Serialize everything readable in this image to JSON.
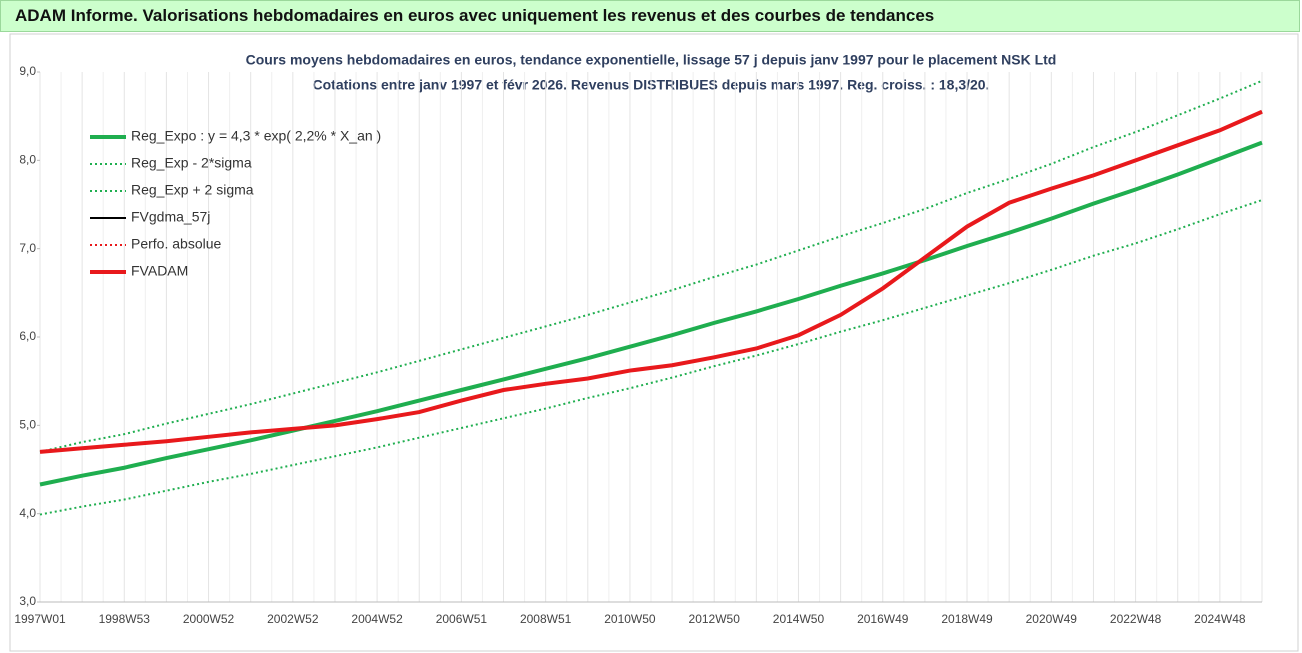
{
  "header": {
    "title": "ADAM Informe. Valorisations hebdomadaires en euros avec uniquement les revenus et des courbes de tendances"
  },
  "chart_data": {
    "type": "line",
    "title": "Cours moyens hebdomadaires en euros, tendance exponentielle, lissage 57 j depuis janv 1997 pour le placement NSK Ltd",
    "subtitle": "Cotations entre janv 1997 et févr 2026. Revenus DISTRIBUES depuis mars 1997. Reg. croiss. : 18,3/20.",
    "categories": [
      "1997W01",
      null,
      "1998W53",
      null,
      "2000W52",
      null,
      "2002W52",
      null,
      "2004W52",
      null,
      "2006W51",
      null,
      "2008W51",
      null,
      "2010W50",
      null,
      "2012W50",
      null,
      "2014W50",
      null,
      "2016W49",
      null,
      "2018W49",
      null,
      "2020W49",
      null,
      "2022W48",
      null,
      "2024W48",
      null
    ],
    "ylim": [
      3,
      9
    ],
    "yticks": [
      {
        "value": 3,
        "label": "3,0"
      },
      {
        "value": 4,
        "label": "4,0"
      },
      {
        "value": 5,
        "label": "5,0"
      },
      {
        "value": 6,
        "label": "6,0"
      },
      {
        "value": 7,
        "label": "7,0"
      },
      {
        "value": 8,
        "label": "8,0"
      },
      {
        "value": 9,
        "label": "9,0"
      }
    ],
    "grid": true,
    "legend": "upper left",
    "series": [
      {
        "name": "Reg_Expo : y = 4,3 * exp( 2,2% *  X_an )",
        "color": "#1fae4f",
        "style": "solid",
        "width": 4,
        "values": [
          4.33,
          4.43,
          4.52,
          4.63,
          4.73,
          4.83,
          4.94,
          5.05,
          5.16,
          5.28,
          5.4,
          5.52,
          5.64,
          5.76,
          5.89,
          6.02,
          6.16,
          6.29,
          6.43,
          6.58,
          6.72,
          6.87,
          7.03,
          7.18,
          7.34,
          7.51,
          7.67,
          7.84,
          8.02,
          8.2
        ]
      },
      {
        "name": "Reg_Exp - 2*sigma",
        "color": "#1fae4f",
        "style": "dotted",
        "width": 2,
        "values": [
          3.99,
          4.08,
          4.16,
          4.26,
          4.36,
          4.45,
          4.55,
          4.65,
          4.75,
          4.86,
          4.97,
          5.08,
          5.19,
          5.31,
          5.42,
          5.54,
          5.67,
          5.79,
          5.92,
          6.06,
          6.19,
          6.33,
          6.47,
          6.61,
          6.76,
          6.92,
          7.06,
          7.22,
          7.39,
          7.55
        ]
      },
      {
        "name": "Reg_Exp + 2 sigma",
        "color": "#1fae4f",
        "style": "dotted",
        "width": 2,
        "values": [
          4.7,
          4.81,
          4.9,
          5.02,
          5.13,
          5.24,
          5.36,
          5.48,
          5.6,
          5.73,
          5.86,
          5.99,
          6.12,
          6.25,
          6.39,
          6.53,
          6.68,
          6.82,
          6.98,
          7.14,
          7.29,
          7.45,
          7.63,
          7.79,
          7.96,
          8.15,
          8.32,
          8.51,
          8.7,
          8.9
        ]
      },
      {
        "name": "FVgdma_57j",
        "color": "#000000",
        "style": "solid",
        "width": 2,
        "values": [
          4.7,
          4.74,
          4.78,
          4.82,
          4.87,
          4.92,
          4.96,
          5.0,
          5.07,
          5.15,
          5.28,
          5.4,
          5.47,
          5.53,
          5.62,
          5.68,
          5.77,
          5.87,
          6.02,
          6.25,
          6.55,
          6.9,
          7.25,
          7.52,
          7.68,
          7.83,
          8.0,
          8.17,
          8.34,
          8.55
        ]
      },
      {
        "name": "Perfo. absolue",
        "color": "#e8191c",
        "style": "dotted",
        "width": 2,
        "values": [
          4.7,
          4.74,
          4.78,
          4.82,
          4.87,
          4.92,
          4.96,
          5.0,
          5.07,
          5.15,
          5.28,
          5.4,
          5.47,
          5.53,
          5.62,
          5.68,
          5.77,
          5.87,
          6.02,
          6.25,
          6.55,
          6.9,
          7.25,
          7.52,
          7.68,
          7.83,
          8.0,
          8.17,
          8.34,
          8.55
        ]
      },
      {
        "name": "FVADAM",
        "color": "#e8191c",
        "style": "solid",
        "width": 4,
        "values": [
          4.7,
          4.74,
          4.78,
          4.82,
          4.87,
          4.92,
          4.96,
          5.0,
          5.07,
          5.15,
          5.28,
          5.4,
          5.47,
          5.53,
          5.62,
          5.68,
          5.77,
          5.87,
          6.02,
          6.25,
          6.55,
          6.9,
          7.25,
          7.52,
          7.68,
          7.83,
          8.0,
          8.17,
          8.34,
          8.55
        ]
      }
    ]
  }
}
